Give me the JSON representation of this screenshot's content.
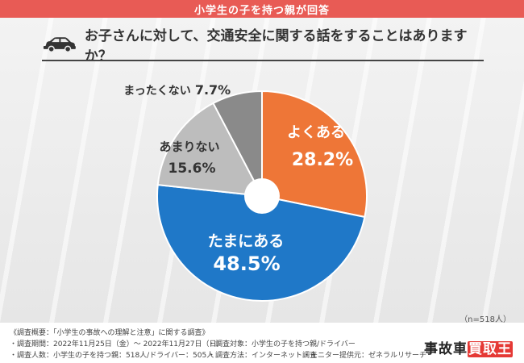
{
  "banner": {
    "title": "小学生の子を持つ親が回答"
  },
  "question": {
    "text": "お子さんに対して、交通安全に関する話をすることはありますか？"
  },
  "icons": {
    "car": "car-icon"
  },
  "colors": {
    "often": "#ee7637",
    "sometimes": "#1f78c8",
    "rarely": "#bdbdbd",
    "never": "#8a8a8a",
    "banner": "#e85b55"
  },
  "chart_data": {
    "type": "pie",
    "title": "お子さんに対して、交通安全に関する話をすることはありますか？",
    "categories": [
      "よくある",
      "たまにある",
      "あまりない",
      "まったくない"
    ],
    "values": [
      28.2,
      48.5,
      15.6,
      7.7
    ],
    "unit": "%",
    "colors": [
      "#ee7637",
      "#1f78c8",
      "#bdbdbd",
      "#8a8a8a"
    ],
    "start": "top",
    "direction": "clockwise"
  },
  "labels": {
    "often": {
      "name": "よくある",
      "pct": "28.2%"
    },
    "sometimes": {
      "name": "たまにある",
      "pct": "48.5%"
    },
    "rarely": {
      "name": "あまりない",
      "pct": "15.6%"
    },
    "never": {
      "name": "まったくない",
      "pct": "7.7%"
    }
  },
  "sample": "（n=518人）",
  "footer": {
    "overview": "《調査概要：「小学生の事故への理解と注意」に関する調査》",
    "period": "・調査期間：2022年11月25日（金）～ 2022年11月27日（日）",
    "count": "・調査人数：小学生の子を持つ親：518人/ドライバー：505人",
    "target": "・調査対象：小学生の子を持つ親/ドライバー",
    "method": "・調査方法：インターネット調査",
    "provider": "・モニター提供元：ゼネラルリサーチ"
  },
  "logo": {
    "main": "事故車",
    "highlight": "買取王"
  }
}
